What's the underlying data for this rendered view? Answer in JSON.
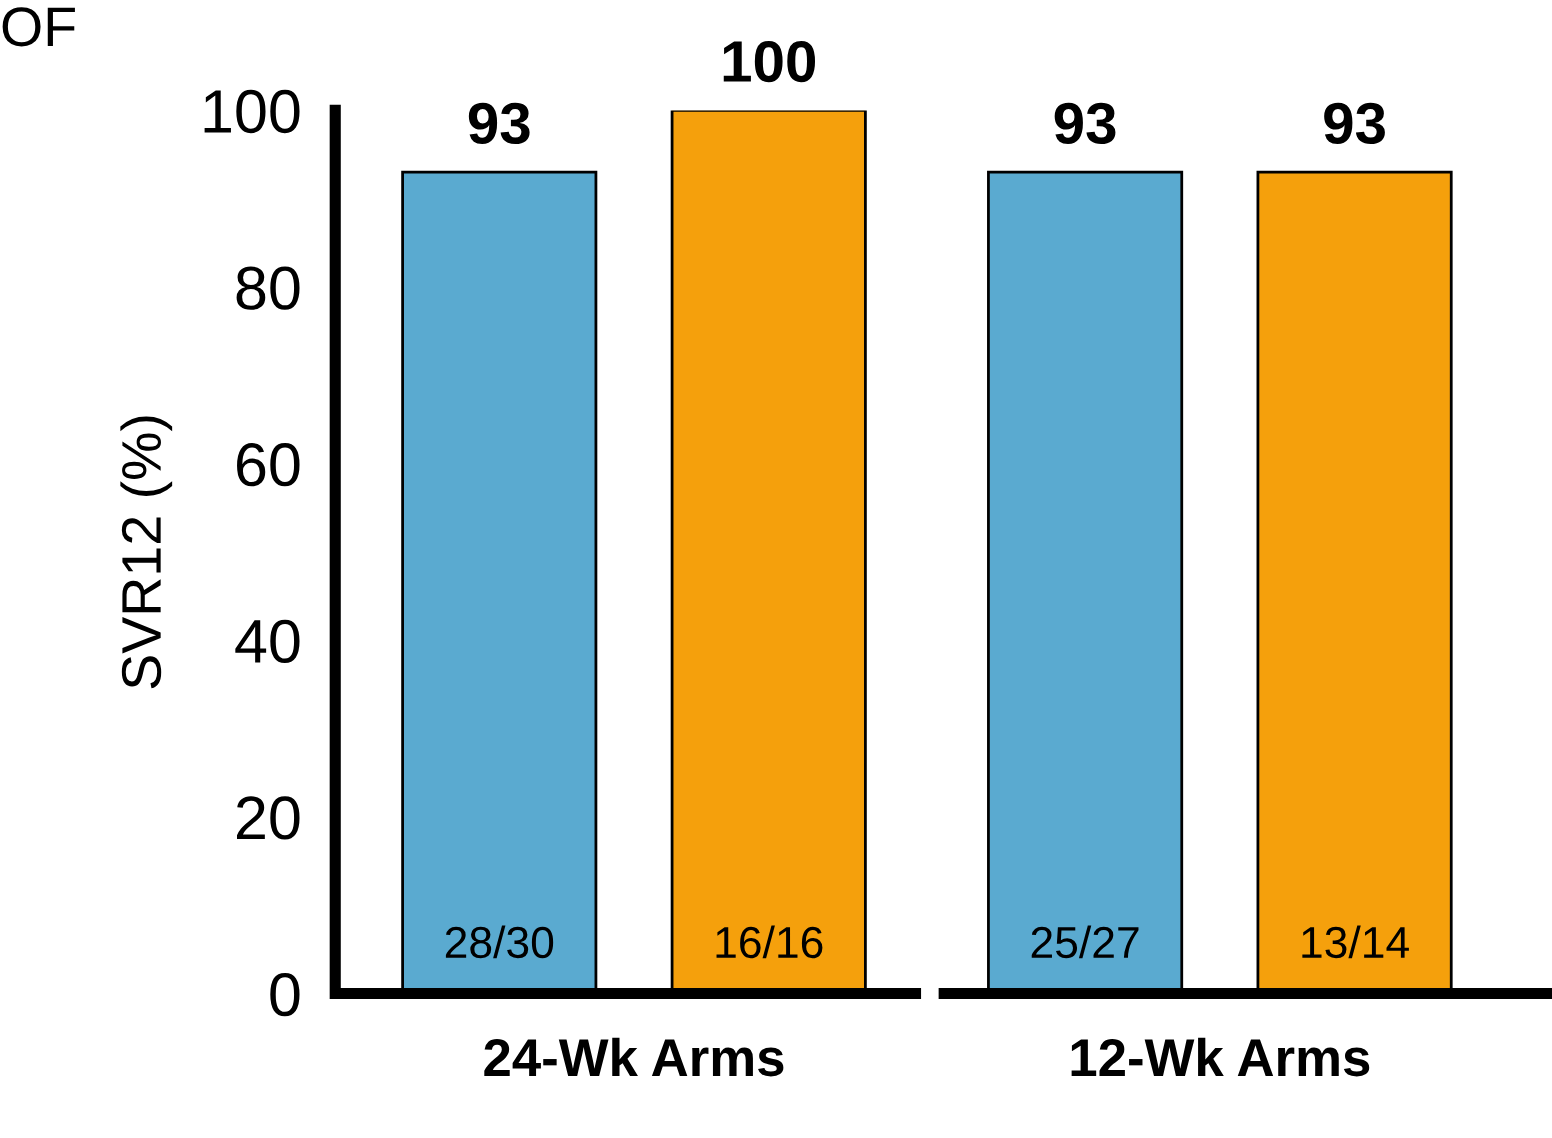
{
  "chart_data": {
    "type": "bar",
    "ylabel": "SVR12 (%)",
    "categories": [
      "24-Wk Arms",
      "12-Wk Arms"
    ],
    "series": [
      {
        "color": "#5aaad0",
        "values": [
          93,
          93
        ]
      },
      {
        "color": "#f5a00c",
        "values": [
          100,
          93
        ]
      }
    ],
    "ylim": [
      0,
      100
    ],
    "yticks": [
      0,
      20,
      40,
      60,
      80,
      100
    ],
    "data_labels": true,
    "grid": false,
    "legend": false,
    "annotations": [
      "OF",
      "28/30",
      "16/16",
      "25/27",
      "13/14"
    ]
  }
}
